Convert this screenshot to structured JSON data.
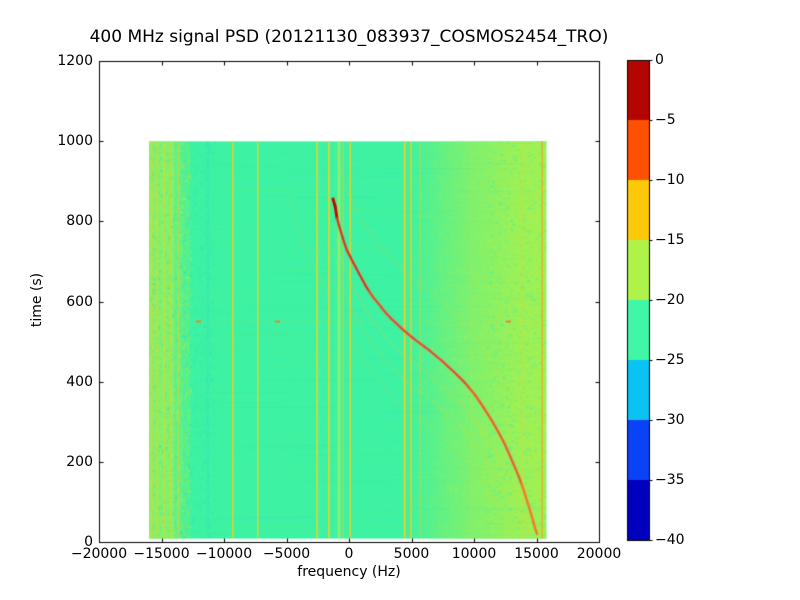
{
  "title": "400 MHz signal PSD (20121130_083937_COSMOS2454_TRO)",
  "axes": {
    "xlabel": "frequency (Hz)",
    "ylabel": "time (s)",
    "x_ticks": {
      "values": [
        -20000,
        -15000,
        -10000,
        -5000,
        0,
        5000,
        10000,
        15000,
        20000
      ],
      "labels": [
        "−20000",
        "−15000",
        "−10000",
        "−5000",
        "0",
        "5000",
        "10000",
        "15000",
        "20000"
      ]
    },
    "y_ticks": {
      "values": [
        0,
        200,
        400,
        600,
        800,
        1000,
        1200
      ],
      "labels": [
        "0",
        "200",
        "400",
        "600",
        "800",
        "1000",
        "1200"
      ]
    }
  },
  "colorbar": {
    "tick_values": [
      0,
      -5,
      -10,
      -15,
      -20,
      -25,
      -30,
      -35,
      -40
    ],
    "tick_labels": [
      "0",
      "−5",
      "−10",
      "−15",
      "−20",
      "−25",
      "−30",
      "−35",
      "−40"
    ],
    "segment_colors_top_to_bottom": [
      "#B40600",
      "#FD5000",
      "#FDC80A",
      "#AFF24A",
      "#41F6A7",
      "#0AC3F2",
      "#0A42F5",
      "#0000BE"
    ]
  },
  "chart_data": {
    "type": "heatmap",
    "title": "400 MHz signal PSD (20121130_083937_COSMOS2454_TRO)",
    "xlabel": "frequency (Hz)",
    "ylabel": "time (s)",
    "xlim": [
      -20000,
      20000
    ],
    "ylim": [
      0,
      1200
    ],
    "colorbar_range_db": [
      0,
      -40
    ],
    "colorbar_segment_colors": [
      "#B40600",
      "#FD5000",
      "#FDC80A",
      "#AFF24A",
      "#41F6A7",
      "#0AC3F2",
      "#0A42F5",
      "#0000BE"
    ],
    "data_extent": {
      "f_min": -16000,
      "f_max": 15800,
      "t_min": 8,
      "t_max": 1000
    },
    "noise_floor_color": "#3DF2A3",
    "elevated_color": "#ACF14B",
    "line_color": "#F8CE1F",
    "cyan_speckle_color": "#2EE0C0",
    "left_band": {
      "f_solid_end": -14000,
      "f_fade_end": -13300,
      "f_band_end": -12700,
      "speckle_to_f": -10800,
      "bright_columns": [
        -15800,
        -15350,
        -14800,
        -14250,
        -13650
      ]
    },
    "right_band": {
      "f_start": 4800,
      "f_strong": 11000
    },
    "vertical_lines": [
      {
        "f": -15800,
        "w": 2,
        "alpha": 0.5
      },
      {
        "f": -15350,
        "w": 2,
        "alpha": 0.45
      },
      {
        "f": -14800,
        "w": 2,
        "alpha": 0.45
      },
      {
        "f": -14250,
        "w": 2,
        "alpha": 0.4
      },
      {
        "f": -13650,
        "w": 2,
        "alpha": 0.4
      },
      {
        "f": -11300,
        "w": 3,
        "alpha": 0.25,
        "color": "#2EE0C0"
      },
      {
        "f": -9300,
        "w": 1.5,
        "alpha": 0.85
      },
      {
        "f": -7300,
        "w": 1.5,
        "alpha": 0.85
      },
      {
        "f": -2550,
        "w": 1.7,
        "alpha": 0.9
      },
      {
        "f": -1600,
        "w": 1.7,
        "alpha": 0.95
      },
      {
        "f": -800,
        "w": 3,
        "alpha": 0.5,
        "color": "#D9EE3E"
      },
      {
        "f": -480,
        "w": 1.2,
        "alpha": 0.5
      },
      {
        "f": 100,
        "w": 1.5,
        "alpha": 0.85
      },
      {
        "f": 4450,
        "w": 2,
        "alpha": 0.95
      },
      {
        "f": 4950,
        "w": 1.5,
        "alpha": 0.85
      },
      {
        "f": 5700,
        "w": 1,
        "alpha": 0.5
      },
      {
        "f": 9800,
        "w": 1,
        "alpha": 0.3
      },
      {
        "f": 13900,
        "w": 1,
        "alpha": 0.35
      },
      {
        "f": 15450,
        "w": 1.6,
        "alpha": 0.8,
        "color": "#F0A830"
      }
    ],
    "doppler_track": {
      "points": [
        [
          -1280,
          856
        ],
        [
          -1100,
          836
        ],
        [
          -960,
          808
        ],
        [
          -800,
          790
        ],
        [
          -640,
          773
        ],
        [
          -480,
          757
        ],
        [
          -320,
          741
        ],
        [
          -160,
          727
        ],
        [
          80,
          713
        ],
        [
          320,
          698
        ],
        [
          560,
          684
        ],
        [
          800,
          670
        ],
        [
          1040,
          656
        ],
        [
          1300,
          641
        ],
        [
          1600,
          626
        ],
        [
          1900,
          612
        ],
        [
          2240,
          599
        ],
        [
          2600,
          585
        ],
        [
          2960,
          571
        ],
        [
          3350,
          558
        ],
        [
          3760,
          546
        ],
        [
          4200,
          533
        ],
        [
          4640,
          521
        ],
        [
          5080,
          510
        ],
        [
          5520,
          499
        ],
        [
          6000,
          488
        ],
        [
          6480,
          477
        ],
        [
          6960,
          464
        ],
        [
          7440,
          452
        ],
        [
          7920,
          438
        ],
        [
          8400,
          424
        ],
        [
          8840,
          411
        ],
        [
          9280,
          397
        ],
        [
          9680,
          382
        ],
        [
          10080,
          367
        ],
        [
          10440,
          351
        ],
        [
          10800,
          334
        ],
        [
          11120,
          318
        ],
        [
          11440,
          302
        ],
        [
          11760,
          285
        ],
        [
          12080,
          267
        ],
        [
          12360,
          250
        ],
        [
          12640,
          232
        ],
        [
          12880,
          215
        ],
        [
          13120,
          197
        ],
        [
          13360,
          180
        ],
        [
          13600,
          162
        ],
        [
          13800,
          145
        ],
        [
          14000,
          127
        ],
        [
          14160,
          111
        ],
        [
          14320,
          95
        ],
        [
          14480,
          79
        ],
        [
          14640,
          62
        ],
        [
          14760,
          49
        ],
        [
          14880,
          35
        ],
        [
          14970,
          27
        ],
        [
          15040,
          20
        ]
      ],
      "color_stops": [
        {
          "t_min": 800,
          "color": "#BC0B00"
        },
        {
          "t_min": 620,
          "color": "#D63828"
        },
        {
          "t_min": 380,
          "color": "#E25038"
        },
        {
          "t_min": 150,
          "color": "#EA622F"
        },
        {
          "t_min": -9999,
          "color": "#F37C27"
        }
      ],
      "halo_color": "rgba(244,150,60,0.22)"
    },
    "ghost_tracks": [
      {
        "dt": 150,
        "alpha": 0.25
      },
      {
        "dt": -60,
        "alpha": 0.3
      },
      {
        "dt": -120,
        "alpha": 0.26
      },
      {
        "dt": -190,
        "alpha": 0.18
      },
      {
        "df": -3300,
        "alpha": 0.2,
        "t_min": 600
      }
    ],
    "event_row": {
      "t": 550,
      "alpha": 0.12,
      "dashes_f": [
        -12080,
        -5760,
        12720
      ],
      "dash_color": "#F08030"
    },
    "speckle_seed": 987654
  }
}
